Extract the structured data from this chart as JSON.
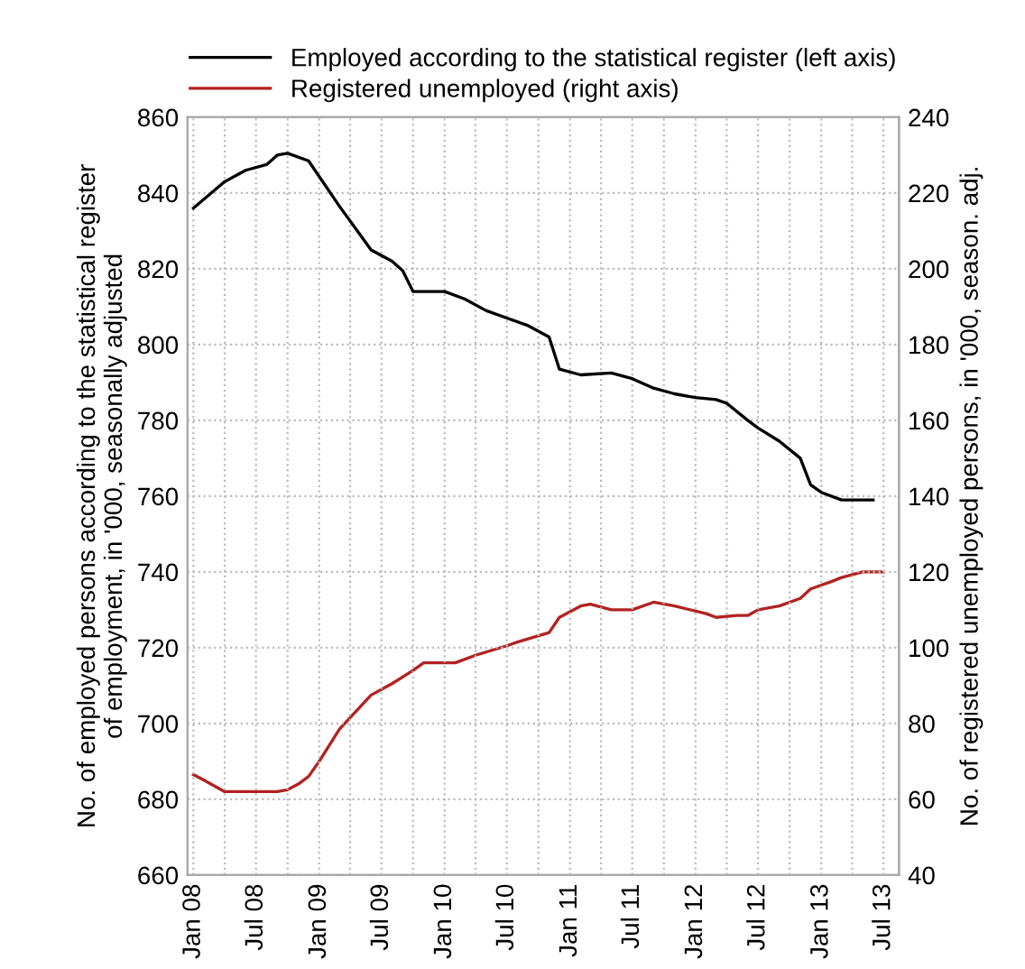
{
  "chart_data": {
    "type": "line",
    "ylabel": "No. of employed persons according to the statistical register\nof employment, in '000, seasonally adjusted",
    "y2label": "No. of registered unemployed persons, in '000, season. adj.",
    "series": [
      {
        "name": "Employed according to the statistical register (left axis)",
        "color": "#000000",
        "axis": "y",
        "x": [
          "2008-01",
          "2008-04",
          "2008-06",
          "2008-08",
          "2008-09",
          "2008-10",
          "2008-12",
          "2009-03",
          "2009-06",
          "2009-08",
          "2009-09",
          "2009-10",
          "2010-01",
          "2010-03",
          "2010-05",
          "2010-07",
          "2010-09",
          "2010-11",
          "2010-12",
          "2011-02",
          "2011-05",
          "2011-07",
          "2011-09",
          "2011-11",
          "2012-01",
          "2012-03",
          "2012-04",
          "2012-06",
          "2012-07",
          "2012-09",
          "2012-11",
          "2012-12",
          "2013-01",
          "2013-03",
          "2013-06"
        ],
        "values": [
          836,
          843,
          846,
          847.5,
          850,
          850.5,
          848.5,
          836.5,
          825,
          822,
          819.5,
          814,
          814,
          812,
          809,
          807,
          805,
          802,
          793.5,
          792,
          792.5,
          791,
          788.5,
          787,
          786,
          785.5,
          784.5,
          780,
          778,
          774.5,
          770,
          763,
          761,
          759,
          759
        ]
      },
      {
        "name": "Registered unemployed (right axis)",
        "color": "#b22222",
        "axis": "y2",
        "x": [
          "2008-01",
          "2008-02",
          "2008-04",
          "2008-09",
          "2008-10",
          "2008-11",
          "2008-12",
          "2009-01",
          "2009-03",
          "2009-06",
          "2009-08",
          "2009-10",
          "2009-11",
          "2010-02",
          "2010-04",
          "2010-07",
          "2010-08",
          "2010-11",
          "2010-12",
          "2011-02",
          "2011-03",
          "2011-05",
          "2011-07",
          "2011-09",
          "2011-11",
          "2012-02",
          "2012-03",
          "2012-05",
          "2012-06",
          "2012-07",
          "2012-09",
          "2012-11",
          "2012-12",
          "2013-02",
          "2013-03",
          "2013-05",
          "2013-07"
        ],
        "values": [
          66.5,
          65,
          62,
          62,
          62.5,
          64,
          66,
          70,
          78.5,
          87.5,
          90.5,
          94,
          96,
          96,
          98,
          100.5,
          101.5,
          104,
          108,
          111,
          111.5,
          110,
          110,
          112,
          111,
          109,
          108,
          108.5,
          108.5,
          110,
          111,
          113,
          115.5,
          117.5,
          118.5,
          120,
          120
        ]
      }
    ],
    "xlim": [
      "2007-12-15",
      "2013-08-15"
    ],
    "xticks": [
      {
        "value": "2008-01",
        "label": "Jan 08"
      },
      {
        "value": "2008-04",
        "label": null
      },
      {
        "value": "2008-07",
        "label": "Jul 08"
      },
      {
        "value": "2008-10",
        "label": null
      },
      {
        "value": "2009-01",
        "label": "Jan 09"
      },
      {
        "value": "2009-04",
        "label": null
      },
      {
        "value": "2009-07",
        "label": "Jul 09"
      },
      {
        "value": "2009-10",
        "label": null
      },
      {
        "value": "2010-01",
        "label": "Jan 10"
      },
      {
        "value": "2010-04",
        "label": null
      },
      {
        "value": "2010-07",
        "label": "Jul 10"
      },
      {
        "value": "2010-10",
        "label": null
      },
      {
        "value": "2011-01",
        "label": "Jan 11"
      },
      {
        "value": "2011-04",
        "label": null
      },
      {
        "value": "2011-07",
        "label": "Jul 11"
      },
      {
        "value": "2011-10",
        "label": null
      },
      {
        "value": "2012-01",
        "label": "Jan 12"
      },
      {
        "value": "2012-04",
        "label": null
      },
      {
        "value": "2012-07",
        "label": "Jul 12"
      },
      {
        "value": "2012-10",
        "label": null
      },
      {
        "value": "2013-01",
        "label": "Jan 13"
      },
      {
        "value": "2013-04",
        "label": null
      },
      {
        "value": "2013-07",
        "label": "Jul 13"
      }
    ],
    "ylim": [
      660,
      860
    ],
    "yticks": [
      660,
      680,
      700,
      720,
      740,
      760,
      780,
      800,
      820,
      840,
      860
    ],
    "y2lim": [
      40,
      240
    ],
    "y2ticks": [
      40,
      60,
      80,
      100,
      120,
      140,
      160,
      180,
      200,
      220,
      240
    ],
    "grid": true,
    "legend": "top",
    "marker": "none",
    "line_style": "solid"
  }
}
